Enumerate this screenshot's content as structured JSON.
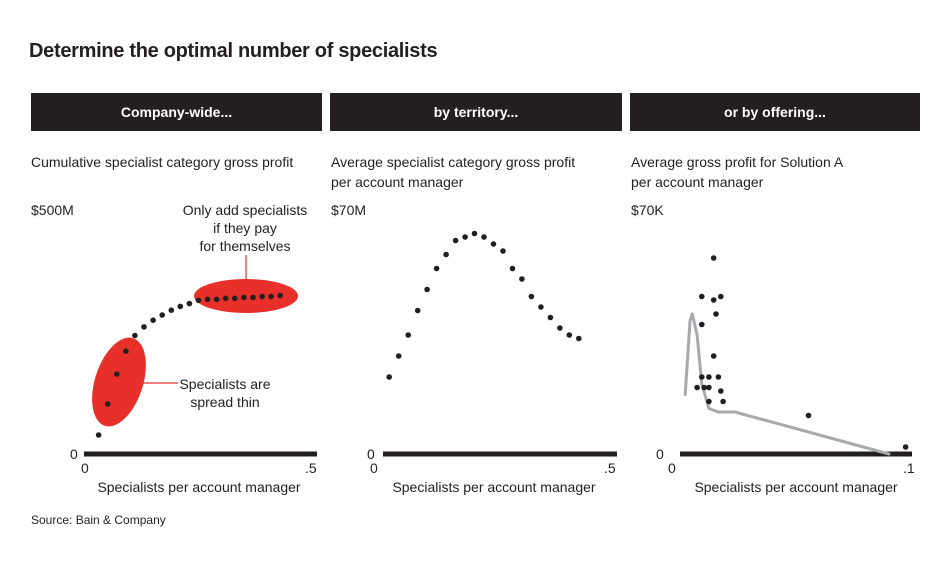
{
  "title": "Determine the optimal number of specialists",
  "source": "Source: Bain & Company",
  "colors": {
    "header_bg": "#231f20",
    "highlight": "#e8302a",
    "dot": "#231f20",
    "fit_line": "#a7a9ac"
  },
  "panels": [
    {
      "header": "Company-wide...",
      "subtitle_line1": "Cumulative specialist category gross profit",
      "subtitle_line2": "",
      "y_top_label": "$500M",
      "y_zero_label": "0",
      "x_min_label": "0",
      "x_max_label": ".5",
      "x_axis_label": "Specialists per account manager",
      "annotations": [
        {
          "line1": "Only add specialists",
          "line2": "if they pay",
          "line3": "for themselves"
        },
        {
          "line1": "Specialists are",
          "line2": "spread thin"
        }
      ]
    },
    {
      "header": "by territory...",
      "subtitle_line1": "Average specialist category gross profit",
      "subtitle_line2": "per account manager",
      "y_top_label": "$70M",
      "y_zero_label": "0",
      "x_min_label": "0",
      "x_max_label": ".5",
      "x_axis_label": "Specialists per account manager"
    },
    {
      "header": "or by offering...",
      "subtitle_line1": "Average gross profit for Solution A",
      "subtitle_line2": "per account manager",
      "y_top_label": "$70K",
      "y_zero_label": "0",
      "x_min_label": "0",
      "x_max_label": ".1",
      "x_axis_label": "Specialists per account manager"
    }
  ],
  "chart_data": [
    {
      "type": "scatter",
      "title": "Company-wide...",
      "subtitle": "Cumulative specialist category gross profit",
      "xlabel": "Specialists per account manager",
      "ylabel": "Cumulative specialist category gross profit",
      "xlim": [
        0,
        0.5
      ],
      "ylim": [
        0,
        500
      ],
      "y_unit": "$M",
      "grid": false,
      "x": [
        0.03,
        0.05,
        0.07,
        0.09,
        0.11,
        0.13,
        0.15,
        0.17,
        0.19,
        0.21,
        0.23,
        0.25,
        0.27,
        0.29,
        0.31,
        0.33,
        0.35,
        0.37,
        0.39,
        0.41,
        0.43
      ],
      "y": [
        40,
        105,
        168,
        216,
        249,
        267,
        281,
        292,
        302,
        310,
        316,
        323,
        325,
        325,
        327,
        327,
        329,
        329,
        331,
        331,
        333
      ],
      "annotations": [
        {
          "text": "Only add specialists if they pay for themselves",
          "region": "x 0.25-0.45, y ~325"
        },
        {
          "text": "Specialists are spread thin",
          "region": "x 0.03-0.09, y ~100-220"
        }
      ]
    },
    {
      "type": "scatter",
      "title": "by territory...",
      "subtitle": "Average specialist category gross profit per account manager",
      "xlabel": "Specialists per account manager",
      "ylabel": "Average specialist category gross profit per account manager",
      "xlim": [
        0,
        0.5
      ],
      "ylim": [
        0,
        70
      ],
      "y_unit": "$M",
      "grid": false,
      "x": [
        0.03,
        0.05,
        0.07,
        0.09,
        0.11,
        0.13,
        0.15,
        0.17,
        0.19,
        0.21,
        0.23,
        0.25,
        0.27,
        0.29,
        0.31,
        0.33,
        0.35,
        0.37,
        0.39,
        0.41,
        0.43
      ],
      "y": [
        22,
        28,
        34,
        41,
        47,
        53,
        57,
        61,
        62,
        63,
        62,
        60,
        58,
        53,
        50,
        45,
        42,
        39,
        36,
        34,
        33
      ]
    },
    {
      "type": "scatter",
      "title": "or by offering...",
      "subtitle": "Average gross profit for Solution A per account manager",
      "xlabel": "Specialists per account manager",
      "ylabel": "Average gross profit for Solution A per account manager",
      "xlim": [
        0,
        0.1
      ],
      "ylim": [
        0,
        70
      ],
      "y_unit": "$K",
      "grid": false,
      "x": [
        0.018,
        0.013,
        0.018,
        0.021,
        0.019,
        0.013,
        0.018,
        0.013,
        0.016,
        0.02,
        0.011,
        0.014,
        0.016,
        0.021,
        0.016,
        0.022,
        0.058,
        0.099
      ],
      "y": [
        56,
        45,
        44,
        45,
        40,
        37,
        28,
        22,
        22,
        22,
        19,
        19,
        19,
        18,
        15,
        15,
        11,
        2
      ],
      "fit_line": {
        "name": "trend",
        "x": [
          0.006,
          0.008,
          0.009,
          0.011,
          0.013,
          0.016,
          0.02,
          0.027,
          0.092
        ],
        "y": [
          17,
          38,
          40,
          34,
          20,
          13,
          12,
          12,
          0
        ]
      }
    }
  ]
}
